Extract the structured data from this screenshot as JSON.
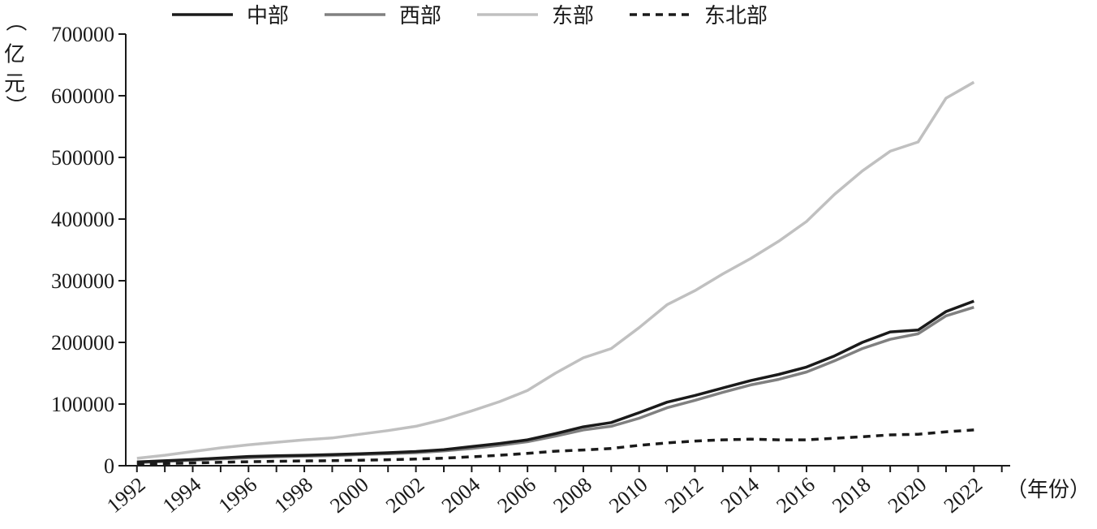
{
  "chart_data": {
    "type": "line",
    "y_unit": "（亿元）",
    "x_unit": "（年份）",
    "x_tick_labels": [
      "1992",
      "1994",
      "1996",
      "1998",
      "2000",
      "2002",
      "2004",
      "2006",
      "2008",
      "2010",
      "2012",
      "2014",
      "2016",
      "2018",
      "2020",
      "2022"
    ],
    "y_tick_labels": [
      "0",
      "100000",
      "200000",
      "300000",
      "400000",
      "500000",
      "600000",
      "700000"
    ],
    "xlim": [
      1991.6,
      2023.3
    ],
    "ylim": [
      0,
      700000
    ],
    "legend_placement": "top",
    "grid": false,
    "x": [
      1992,
      1993,
      1994,
      1995,
      1996,
      1997,
      1998,
      1999,
      2000,
      2001,
      2002,
      2003,
      2004,
      2005,
      2006,
      2007,
      2008,
      2009,
      2010,
      2011,
      2012,
      2013,
      2014,
      2015,
      2016,
      2017,
      2018,
      2019,
      2020,
      2021,
      2022
    ],
    "series": [
      {
        "name": "中部",
        "color": "#1a1a1a",
        "dash": "solid",
        "values": [
          6000,
          8000,
          10000,
          12500,
          15000,
          16000,
          17000,
          18000,
          19500,
          21000,
          23000,
          26000,
          31000,
          36000,
          42000,
          52000,
          63000,
          70000,
          86000,
          103000,
          114000,
          126000,
          138000,
          148000,
          160000,
          178000,
          200000,
          217000,
          220000,
          250000,
          267000
        ]
      },
      {
        "name": "西部",
        "color": "#808080",
        "dash": "solid",
        "values": [
          5000,
          7000,
          9000,
          11000,
          13000,
          14500,
          15500,
          16500,
          18000,
          19500,
          21000,
          24000,
          28000,
          33000,
          39000,
          48000,
          58000,
          64000,
          77000,
          94000,
          106000,
          119000,
          131000,
          140000,
          152000,
          170000,
          190000,
          205000,
          214000,
          243000,
          257000
        ]
      },
      {
        "name": "东部",
        "color": "#c0c0c0",
        "dash": "solid",
        "values": [
          12000,
          17000,
          23000,
          29000,
          34000,
          38000,
          42000,
          45000,
          51000,
          57000,
          64000,
          75000,
          89000,
          104000,
          122000,
          150000,
          175000,
          190000,
          224000,
          261000,
          284000,
          311000,
          336000,
          364000,
          396000,
          440000,
          478000,
          510000,
          525000,
          596000,
          622000
        ]
      },
      {
        "name": "东北部",
        "color": "#1a1a1a",
        "dash": "dashed",
        "values": [
          2500,
          3500,
          4500,
          5500,
          6500,
          7200,
          7800,
          8200,
          9000,
          9800,
          10800,
          12200,
          14500,
          17000,
          20000,
          23500,
          25500,
          28000,
          33000,
          37000,
          40000,
          42000,
          43000,
          42000,
          42000,
          44500,
          47000,
          50000,
          51000,
          55000,
          58000
        ]
      }
    ]
  }
}
